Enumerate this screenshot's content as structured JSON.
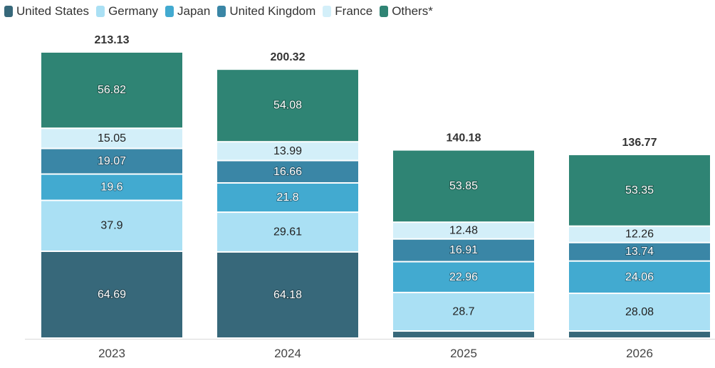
{
  "chart_data": {
    "type": "bar",
    "stacked": true,
    "categories": [
      "2023",
      "2024",
      "2025",
      "2026"
    ],
    "series": [
      {
        "name": "United States",
        "color": "#37687a",
        "values": [
          64.69,
          64.18,
          5.28,
          5.28
        ]
      },
      {
        "name": "Germany",
        "color": "#aae0f4",
        "values": [
          37.9,
          29.61,
          28.7,
          28.08
        ]
      },
      {
        "name": "Japan",
        "color": "#42aad0",
        "values": [
          19.6,
          21.8,
          22.96,
          24.06
        ]
      },
      {
        "name": "United Kingdom",
        "color": "#3a86a6",
        "values": [
          19.07,
          16.66,
          16.91,
          13.74
        ]
      },
      {
        "name": "France",
        "color": "#d3eff9",
        "values": [
          15.05,
          13.99,
          12.48,
          12.26
        ]
      },
      {
        "name": "Others*",
        "color": "#2f8474",
        "values": [
          56.82,
          54.08,
          53.85,
          53.35
        ]
      }
    ],
    "value_labels": [
      [
        "64.69",
        "64.18",
        "",
        ""
      ],
      [
        "37.9",
        "29.61",
        "28.7",
        "28.08"
      ],
      [
        "19.6",
        "21.8",
        "22.96",
        "24.06"
      ],
      [
        "19.07",
        "16.66",
        "16.91",
        "13.74"
      ],
      [
        "15.05",
        "13.99",
        "12.48",
        "12.26"
      ],
      [
        "56.82",
        "54.08",
        "53.85",
        "53.35"
      ]
    ],
    "totals": [
      "213.13",
      "200.32",
      "140.18",
      "136.77"
    ],
    "ylim": [
      0,
      213.13
    ],
    "grid": false,
    "legend_position": "top-left"
  }
}
